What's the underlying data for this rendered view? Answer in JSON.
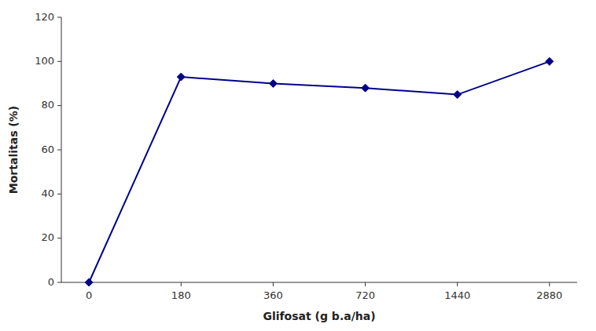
{
  "chart_data": {
    "type": "line",
    "x_label": "Glifosat (g b.a/ha)",
    "y_label": "Mortalitas (%)",
    "categories": [
      "0",
      "180",
      "360",
      "720",
      "1440",
      "2880"
    ],
    "values": [
      0,
      93,
      90,
      88,
      85,
      100
    ],
    "color": "#00008B",
    "marker": "diamond",
    "ylim": [
      0,
      120
    ],
    "yticks": [
      0,
      20,
      40,
      60,
      80,
      100,
      120
    ],
    "grid": false
  }
}
